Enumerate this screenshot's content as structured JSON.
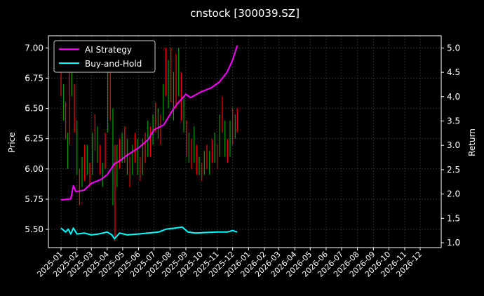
{
  "chart_data": {
    "type": "line",
    "title": "cnstock [300039.SZ]",
    "ylabel_left": "Price",
    "ylabel_right": "Return",
    "xlabel": "",
    "x_ticks": [
      "2025-01",
      "2025-02",
      "2025-03",
      "2025-04",
      "2025-05",
      "2025-06",
      "2025-07",
      "2025-08",
      "2025-09",
      "2025-10",
      "2025-11",
      "2025-12",
      "2026-01",
      "2026-02",
      "2026-03",
      "2026-04",
      "2026-05",
      "2026-06",
      "2026-07",
      "2026-08",
      "2026-09",
      "2026-10",
      "2026-11",
      "2026-12"
    ],
    "y_left_ticks": [
      5.5,
      5.75,
      6.0,
      6.25,
      6.5,
      6.75,
      7.0
    ],
    "y_left_range": [
      5.35,
      7.1
    ],
    "y_right_ticks": [
      1.0,
      1.5,
      2.0,
      2.5,
      3.0,
      3.5,
      4.0,
      4.5,
      5.0
    ],
    "y_right_range": [
      0.9,
      5.25
    ],
    "grid": true,
    "legend_position": "top-left",
    "colors": {
      "up": "#ff0000",
      "down": "#00a000",
      "ai": "#ff00ff",
      "bh": "#00ffff"
    },
    "series": [
      {
        "name": "AI Strategy",
        "axis": "right",
        "color": "#ff00ff",
        "points": [
          [
            "2025-01-01",
            1.88
          ],
          [
            "2025-01-10",
            1.89
          ],
          [
            "2025-01-20",
            1.9
          ],
          [
            "2025-01-25",
            2.17
          ],
          [
            "2025-01-30",
            2.05
          ],
          [
            "2025-02-15",
            2.08
          ],
          [
            "2025-03-01",
            2.22
          ],
          [
            "2025-03-20",
            2.3
          ],
          [
            "2025-04-01",
            2.4
          ],
          [
            "2025-04-15",
            2.62
          ],
          [
            "2025-04-25",
            2.68
          ],
          [
            "2025-05-10",
            2.8
          ],
          [
            "2025-06-01",
            2.95
          ],
          [
            "2025-06-20",
            3.12
          ],
          [
            "2025-07-01",
            3.32
          ],
          [
            "2025-07-20",
            3.42
          ],
          [
            "2025-08-05",
            3.7
          ],
          [
            "2025-08-15",
            3.85
          ],
          [
            "2025-09-01",
            4.05
          ],
          [
            "2025-09-10",
            3.98
          ],
          [
            "2025-10-01",
            4.1
          ],
          [
            "2025-10-20",
            4.18
          ],
          [
            "2025-11-05",
            4.3
          ],
          [
            "2025-11-20",
            4.5
          ],
          [
            "2025-12-01",
            4.75
          ],
          [
            "2025-12-10",
            5.05
          ]
        ]
      },
      {
        "name": "Buy-and-Hold",
        "axis": "right",
        "color": "#00ffff",
        "points": [
          [
            "2025-01-01",
            1.3
          ],
          [
            "2025-01-10",
            1.22
          ],
          [
            "2025-01-15",
            1.28
          ],
          [
            "2025-01-20",
            1.18
          ],
          [
            "2025-01-25",
            1.3
          ],
          [
            "2025-02-01",
            1.18
          ],
          [
            "2025-02-15",
            1.2
          ],
          [
            "2025-03-01",
            1.16
          ],
          [
            "2025-03-15",
            1.18
          ],
          [
            "2025-04-01",
            1.22
          ],
          [
            "2025-04-10",
            1.16
          ],
          [
            "2025-04-15",
            1.08
          ],
          [
            "2025-04-25",
            1.2
          ],
          [
            "2025-05-10",
            1.16
          ],
          [
            "2025-06-01",
            1.18
          ],
          [
            "2025-06-20",
            1.2
          ],
          [
            "2025-07-10",
            1.22
          ],
          [
            "2025-07-25",
            1.28
          ],
          [
            "2025-08-10",
            1.3
          ],
          [
            "2025-08-25",
            1.32
          ],
          [
            "2025-09-05",
            1.22
          ],
          [
            "2025-09-20",
            1.2
          ],
          [
            "2025-10-10",
            1.21
          ],
          [
            "2025-11-01",
            1.22
          ],
          [
            "2025-11-20",
            1.22
          ],
          [
            "2025-12-01",
            1.25
          ],
          [
            "2025-12-10",
            1.22
          ]
        ]
      }
    ],
    "price_bars": [
      [
        "2025-01-01",
        7.0,
        6.6
      ],
      [
        "2025-01-06",
        6.7,
        6.4
      ],
      [
        "2025-01-10",
        6.55,
        6.25
      ],
      [
        "2025-01-14",
        6.3,
        6.0
      ],
      [
        "2025-01-18",
        6.9,
        6.2
      ],
      [
        "2025-01-22",
        7.0,
        6.6
      ],
      [
        "2025-01-27",
        6.7,
        6.3
      ],
      [
        "2025-02-01",
        6.4,
        5.95
      ],
      [
        "2025-02-06",
        6.0,
        5.7
      ],
      [
        "2025-02-11",
        6.1,
        5.85
      ],
      [
        "2025-02-16",
        6.2,
        5.9
      ],
      [
        "2025-02-21",
        6.2,
        5.95
      ],
      [
        "2025-02-26",
        6.05,
        5.85
      ],
      [
        "2025-03-03",
        6.3,
        5.95
      ],
      [
        "2025-03-08",
        6.45,
        6.15
      ],
      [
        "2025-03-13",
        6.35,
        6.05
      ],
      [
        "2025-03-18",
        6.2,
        5.95
      ],
      [
        "2025-03-23",
        6.05,
        5.85
      ],
      [
        "2025-03-28",
        6.3,
        6.0
      ],
      [
        "2025-04-02",
        6.8,
        6.3
      ],
      [
        "2025-04-07",
        6.8,
        6.4
      ],
      [
        "2025-04-12",
        6.5,
        5.7
      ],
      [
        "2025-04-16",
        6.2,
        5.4
      ],
      [
        "2025-04-20",
        6.2,
        5.85
      ],
      [
        "2025-04-25",
        6.25,
        6.0
      ],
      [
        "2025-04-30",
        6.3,
        6.05
      ],
      [
        "2025-05-05",
        6.35,
        6.05
      ],
      [
        "2025-05-10",
        6.25,
        5.95
      ],
      [
        "2025-05-15",
        6.1,
        5.85
      ],
      [
        "2025-05-20",
        6.2,
        5.95
      ],
      [
        "2025-05-25",
        6.3,
        6.05
      ],
      [
        "2025-05-30",
        6.25,
        5.95
      ],
      [
        "2025-06-04",
        6.1,
        5.9
      ],
      [
        "2025-06-09",
        6.25,
        5.95
      ],
      [
        "2025-06-14",
        6.3,
        6.05
      ],
      [
        "2025-06-19",
        6.4,
        6.1
      ],
      [
        "2025-06-24",
        6.35,
        6.1
      ],
      [
        "2025-06-29",
        6.45,
        6.2
      ],
      [
        "2025-07-04",
        6.55,
        6.3
      ],
      [
        "2025-07-09",
        6.5,
        6.25
      ],
      [
        "2025-07-14",
        6.45,
        6.2
      ],
      [
        "2025-07-19",
        6.7,
        6.4
      ],
      [
        "2025-07-24",
        7.0,
        6.6
      ],
      [
        "2025-07-29",
        6.9,
        6.5
      ],
      [
        "2025-08-03",
        7.0,
        6.55
      ],
      [
        "2025-08-08",
        6.8,
        6.4
      ],
      [
        "2025-08-13",
        6.95,
        6.5
      ],
      [
        "2025-08-18",
        7.0,
        6.6
      ],
      [
        "2025-08-23",
        6.8,
        6.4
      ],
      [
        "2025-08-28",
        6.6,
        6.3
      ],
      [
        "2025-09-02",
        6.4,
        6.1
      ],
      [
        "2025-09-07",
        6.3,
        6.05
      ],
      [
        "2025-09-12",
        6.25,
        6.0
      ],
      [
        "2025-09-17",
        6.35,
        6.05
      ],
      [
        "2025-09-22",
        6.2,
        5.95
      ],
      [
        "2025-09-27",
        6.1,
        5.95
      ],
      [
        "2025-10-02",
        6.05,
        5.9
      ],
      [
        "2025-10-07",
        6.15,
        5.95
      ],
      [
        "2025-10-12",
        6.2,
        6.0
      ],
      [
        "2025-10-17",
        6.15,
        5.95
      ],
      [
        "2025-10-22",
        6.25,
        6.05
      ],
      [
        "2025-10-27",
        6.3,
        6.05
      ],
      [
        "2025-11-01",
        6.2,
        6.0
      ],
      [
        "2025-11-06",
        6.45,
        6.1
      ],
      [
        "2025-11-11",
        6.6,
        6.3
      ],
      [
        "2025-11-16",
        6.4,
        6.1
      ],
      [
        "2025-11-21",
        6.25,
        6.05
      ],
      [
        "2025-11-26",
        6.4,
        6.1
      ],
      [
        "2025-12-01",
        6.5,
        6.2
      ],
      [
        "2025-12-06",
        6.45,
        6.25
      ],
      [
        "2025-12-10",
        6.5,
        6.3
      ]
    ]
  }
}
